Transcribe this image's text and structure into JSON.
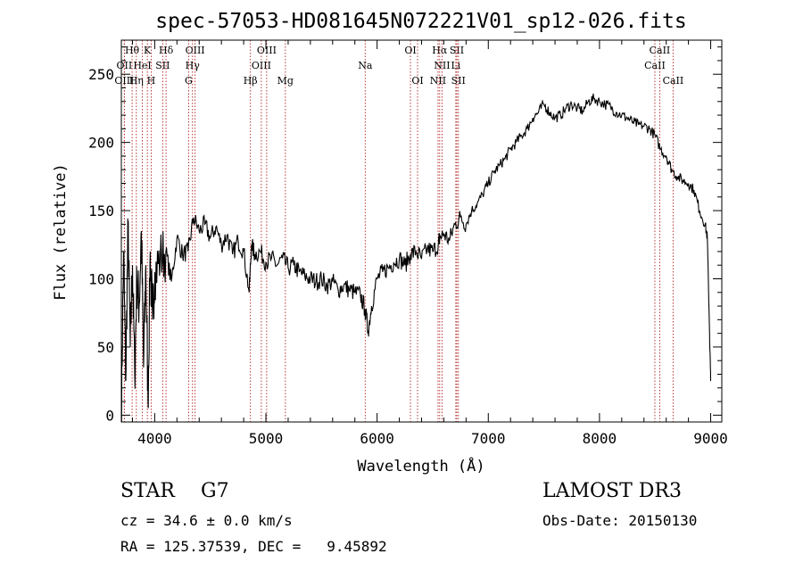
{
  "chart_data": {
    "type": "line",
    "title": "spec-57053-HD081645N072221V01_sp12-026.fits",
    "xlabel": "Wavelength (Å)",
    "ylabel": "Flux (relative)",
    "xlim": [
      3700,
      9100
    ],
    "ylim": [
      -5,
      275
    ],
    "xticks": [
      4000,
      5000,
      6000,
      7000,
      8000,
      9000
    ],
    "yticks": [
      0,
      50,
      100,
      150,
      200,
      250
    ],
    "series": [
      {
        "name": "spectrum",
        "color": "#000000",
        "x": [
          3700,
          3720,
          3740,
          3760,
          3780,
          3800,
          3820,
          3840,
          3860,
          3880,
          3900,
          3920,
          3940,
          3960,
          3980,
          4000,
          4050,
          4100,
          4150,
          4200,
          4250,
          4300,
          4350,
          4400,
          4450,
          4500,
          4550,
          4600,
          4650,
          4700,
          4750,
          4800,
          4850,
          4870,
          4900,
          4950,
          5000,
          5050,
          5100,
          5150,
          5200,
          5250,
          5300,
          5350,
          5400,
          5450,
          5500,
          5550,
          5600,
          5650,
          5700,
          5750,
          5800,
          5850,
          5890,
          5920,
          5950,
          6000,
          6050,
          6100,
          6150,
          6200,
          6250,
          6300,
          6350,
          6400,
          6450,
          6500,
          6550,
          6563,
          6600,
          6650,
          6700,
          6750,
          6800,
          6850,
          6900,
          6950,
          7000,
          7050,
          7100,
          7150,
          7200,
          7250,
          7300,
          7350,
          7400,
          7450,
          7500,
          7550,
          7600,
          7650,
          7700,
          7750,
          7800,
          7850,
          7900,
          7950,
          8000,
          8050,
          8100,
          8150,
          8200,
          8250,
          8300,
          8350,
          8400,
          8450,
          8500,
          8550,
          8600,
          8650,
          8700,
          8750,
          8800,
          8850,
          8900,
          8950,
          8970,
          8990,
          9000
        ],
        "y": [
          0,
          120,
          25,
          140,
          50,
          110,
          30,
          100,
          80,
          135,
          35,
          110,
          10,
          120,
          70,
          105,
          115,
          120,
          98,
          130,
          118,
          120,
          145,
          135,
          140,
          130,
          138,
          125,
          132,
          118,
          128,
          120,
          90,
          125,
          118,
          120,
          112,
          115,
          110,
          115,
          108,
          110,
          105,
          102,
          100,
          98,
          100,
          95,
          98,
          92,
          95,
          92,
          90,
          88,
          78,
          62,
          80,
          100,
          105,
          108,
          112,
          115,
          110,
          118,
          120,
          115,
          122,
          120,
          125,
          130,
          133,
          128,
          140,
          145,
          140,
          150,
          155,
          162,
          170,
          178,
          183,
          188,
          195,
          200,
          205,
          210,
          218,
          222,
          228,
          222,
          218,
          220,
          225,
          228,
          225,
          223,
          230,
          232,
          230,
          228,
          226,
          222,
          220,
          218,
          215,
          213,
          212,
          210,
          205,
          195,
          190,
          180,
          175,
          172,
          170,
          165,
          150,
          140,
          130,
          60,
          25
        ]
      }
    ],
    "lines": [
      {
        "name": "Hθ",
        "x": 3797,
        "row": 0
      },
      {
        "name": "K",
        "x": 3934,
        "row": 0
      },
      {
        "name": "Hδ",
        "x": 4102,
        "row": 0
      },
      {
        "name": "OIII",
        "x": 4363,
        "row": 0
      },
      {
        "name": "OIII",
        "x": 5007,
        "row": 0
      },
      {
        "name": "OI",
        "x": 6300,
        "row": 0
      },
      {
        "name": "Hα",
        "x": 6563,
        "row": 0
      },
      {
        "name": "SII",
        "x": 6717,
        "row": 0
      },
      {
        "name": "CaII",
        "x": 8542,
        "row": 0
      },
      {
        "name": "OII",
        "x": 3727,
        "row": 1
      },
      {
        "name": "HeI",
        "x": 3889,
        "row": 1
      },
      {
        "name": "SII",
        "x": 4072,
        "row": 1
      },
      {
        "name": "Hγ",
        "x": 4340,
        "row": 1
      },
      {
        "name": "OIII",
        "x": 4959,
        "row": 1
      },
      {
        "name": "Na",
        "x": 5893,
        "row": 1
      },
      {
        "name": "NII",
        "x": 6584,
        "row": 1
      },
      {
        "name": "Li",
        "x": 6708,
        "row": 1
      },
      {
        "name": "CaII",
        "x": 8498,
        "row": 1
      },
      {
        "name": "OIII",
        "x": 3727,
        "row": 2
      },
      {
        "name": "Hη",
        "x": 3835,
        "row": 2
      },
      {
        "name": "H",
        "x": 3968,
        "row": 2
      },
      {
        "name": "G",
        "x": 4305,
        "row": 2
      },
      {
        "name": "Hβ",
        "x": 4861,
        "row": 2
      },
      {
        "name": "Mg",
        "x": 5175,
        "row": 2
      },
      {
        "name": "OI",
        "x": 6364,
        "row": 2
      },
      {
        "name": "NII",
        "x": 6548,
        "row": 2
      },
      {
        "name": "SII",
        "x": 6731,
        "row": 2
      },
      {
        "name": "CaII",
        "x": 8662,
        "row": 2
      }
    ]
  },
  "info": {
    "class": "STAR",
    "subclass": "G7",
    "survey": "LAMOST DR3",
    "cz": "cz = 34.6 ± 0.0 km/s",
    "obs_date": "Obs-Date: 20150130",
    "radec": "RA = 125.37539, DEC =   9.45892"
  }
}
